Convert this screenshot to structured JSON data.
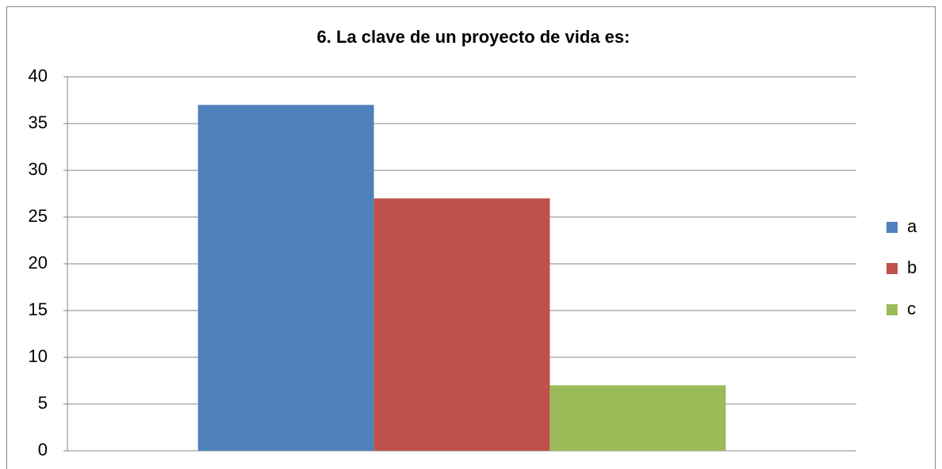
{
  "chart_data": {
    "type": "bar",
    "title": "6.  La clave de un proyecto de vida es:",
    "categories": [
      null
    ],
    "series": [
      {
        "name": "a",
        "color": "#4f81bd",
        "values": [
          37
        ]
      },
      {
        "name": "b",
        "color": "#c0504d",
        "values": [
          27
        ]
      },
      {
        "name": "c",
        "color": "#9bbb59",
        "values": [
          7
        ]
      }
    ],
    "ylim": [
      0,
      40
    ],
    "yticks": [
      0,
      5,
      10,
      15,
      20,
      25,
      30,
      35,
      40
    ],
    "grid": true,
    "legend": "right"
  }
}
